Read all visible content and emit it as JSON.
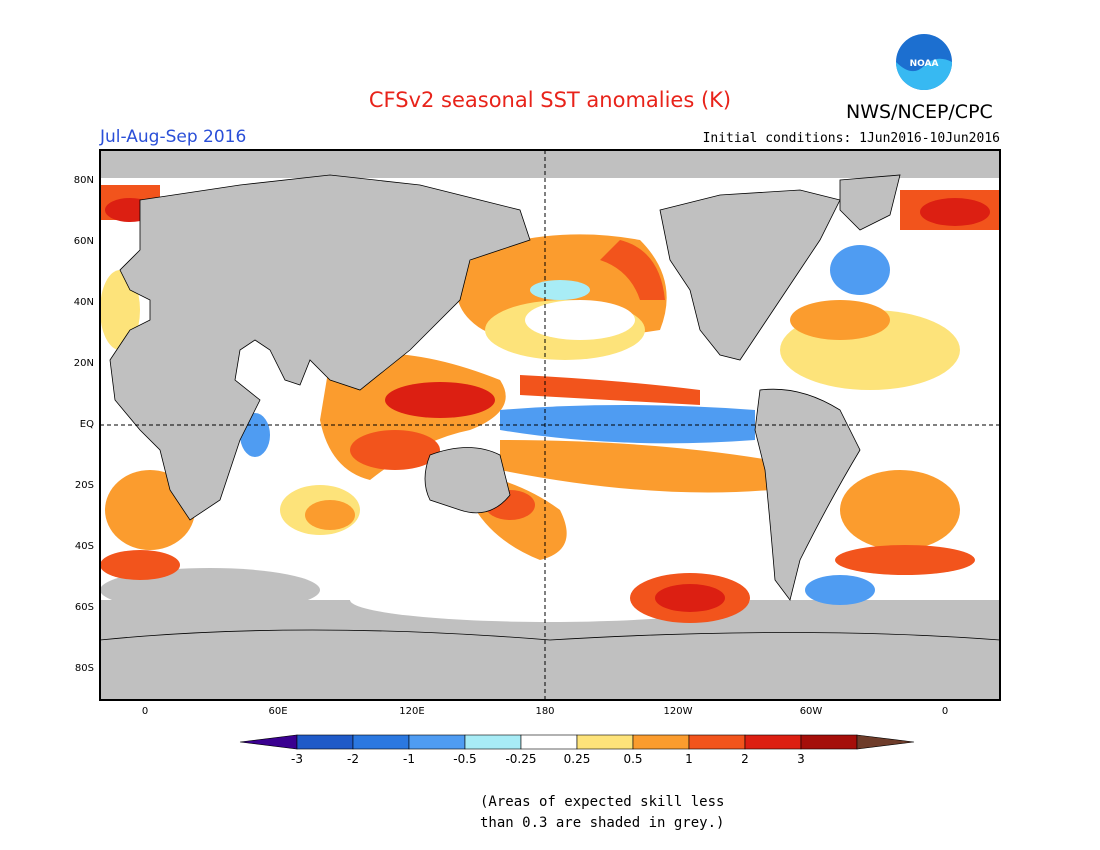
{
  "title": "CFSv2 seasonal SST anomalies (K)",
  "agency": "NWS/NCEP/CPC",
  "logo_text": "NOAA",
  "period": "Jul-Aug-Sep 2016",
  "initial_conditions": "Initial conditions: 1Jun2016-10Jun2016",
  "lat_labels": [
    "80N",
    "60N",
    "40N",
    "20N",
    "EQ",
    "20S",
    "40S",
    "60S",
    "80S"
  ],
  "lon_labels": [
    "0",
    "60E",
    "120E",
    "180",
    "120W",
    "60W",
    "0"
  ],
  "colorbar": {
    "labels": [
      "-3",
      "-2",
      "-1",
      "-0.5",
      "-0.25",
      "0.25",
      "0.5",
      "1",
      "2",
      "3"
    ],
    "colors": [
      "#3a0090",
      "#1f5ac8",
      "#2b78e0",
      "#4f9cf2",
      "#a8ecf6",
      "#ffffff",
      "#fde37a",
      "#fb9c2e",
      "#f2541c",
      "#dc1f12",
      "#a50f0a",
      "#6e3c2a"
    ]
  },
  "note": [
    "(Areas of expected skill less",
    "than 0.3 are shaded in grey.)"
  ],
  "colors": {
    "land": "#c0c0c0",
    "grey_skill": "#c0c0c0",
    "title": "#e8231a",
    "period": "#2a4fd8"
  }
}
